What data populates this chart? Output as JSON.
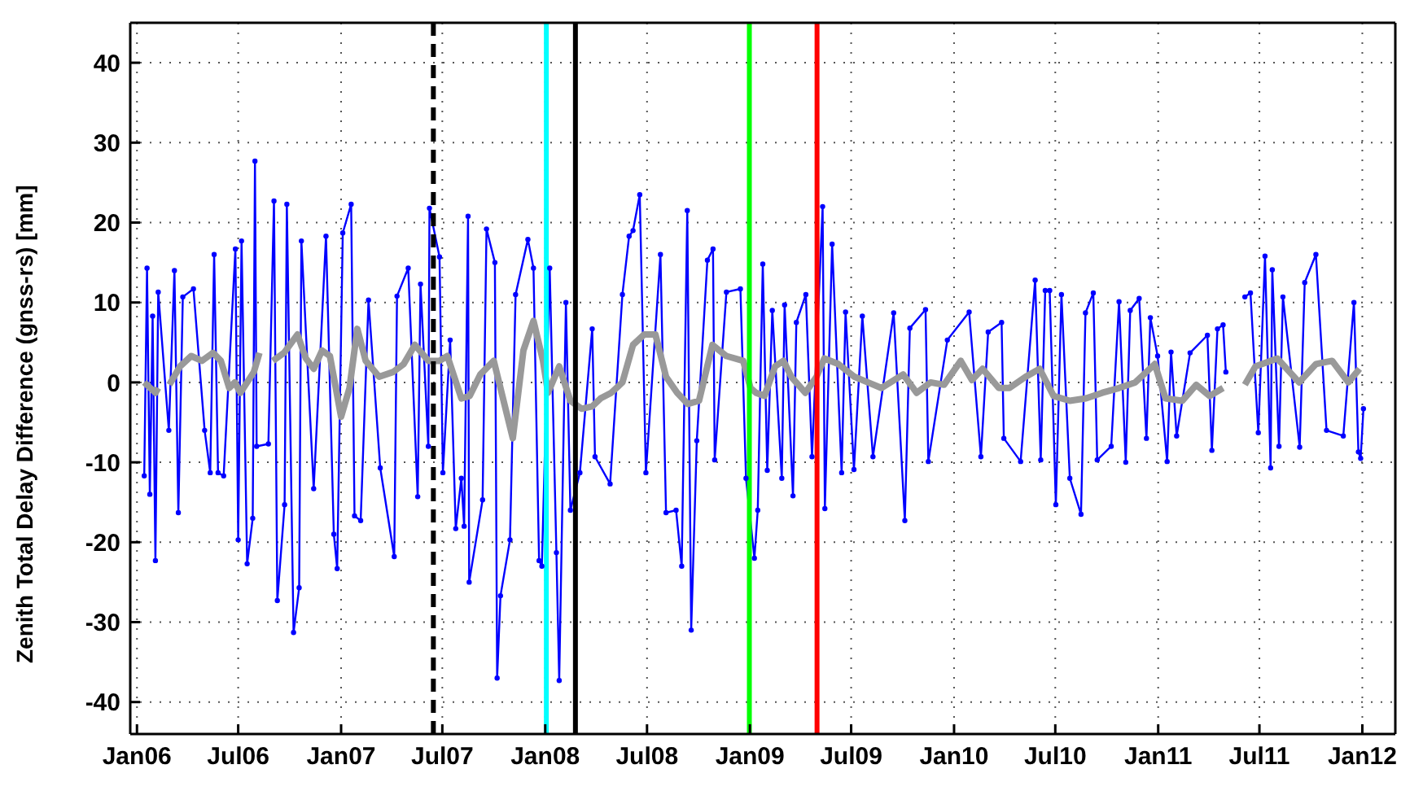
{
  "chart_data": {
    "type": "line",
    "ylabel": "Zenith Total Delay Difference (gnss-rs) [mm]",
    "xlim": [
      "2005-12-20",
      "2012-02-29"
    ],
    "ylim": [
      -44,
      45
    ],
    "xticks": [
      {
        "value": "2006-01-01",
        "label": "Jan06"
      },
      {
        "value": "2006-07-01",
        "label": "Jul06"
      },
      {
        "value": "2007-01-01",
        "label": "Jan07"
      },
      {
        "value": "2007-07-01",
        "label": "Jul07"
      },
      {
        "value": "2008-01-01",
        "label": "Jan08"
      },
      {
        "value": "2008-07-01",
        "label": "Jul08"
      },
      {
        "value": "2009-01-01",
        "label": "Jan09"
      },
      {
        "value": "2009-07-01",
        "label": "Jul09"
      },
      {
        "value": "2010-01-01",
        "label": "Jan10"
      },
      {
        "value": "2010-07-01",
        "label": "Jul10"
      },
      {
        "value": "2011-01-01",
        "label": "Jan11"
      },
      {
        "value": "2011-07-01",
        "label": "Jul11"
      },
      {
        "value": "2012-01-01",
        "label": "Jan12"
      }
    ],
    "yticks": [
      -40,
      -30,
      -20,
      -10,
      0,
      10,
      20,
      30,
      40
    ],
    "grid": true,
    "legend": false,
    "series": [
      {
        "color": "#0000ff",
        "marker": "circle",
        "line_style": "solid",
        "x": [
          "2006-01-14",
          "2006-01-19",
          "2006-01-24",
          "2006-01-29",
          "2006-02-03",
          "2006-02-08",
          "2006-02-27",
          "2006-03-09",
          "2006-03-16",
          "2006-03-24",
          "2006-04-12",
          "2006-05-02",
          "2006-05-12",
          "2006-05-19",
          "2006-05-26",
          "2006-06-05",
          "2006-06-26",
          "2006-07-01",
          "2006-07-07",
          "2006-07-17",
          "2006-07-27",
          "2006-07-31",
          "2006-08-03",
          "2006-08-24",
          "2006-09-03",
          "2006-09-09",
          "2006-09-22",
          "2006-09-26",
          "2006-10-08",
          "2006-10-18",
          "2006-10-22",
          "2006-11-13",
          "2006-12-05",
          "2006-12-19",
          "2006-12-25",
          "2007-01-04",
          "2007-01-19",
          "2007-01-25",
          "2007-02-05",
          "2007-02-19",
          "2007-03-12",
          "2007-04-06",
          "2007-04-11",
          "2007-05-01",
          "2007-05-18",
          "2007-05-23",
          "2007-06-06",
          "2007-06-08",
          "2007-06-26",
          "2007-07-02",
          "2007-07-15",
          "2007-07-25",
          "2007-08-04",
          "2007-08-09",
          "2007-08-16",
          "2007-08-18",
          "2007-09-11",
          "2007-09-18",
          "2007-10-03",
          "2007-10-07",
          "2007-10-13",
          "2007-10-30",
          "2007-11-09",
          "2007-12-01",
          "2007-12-11",
          "2007-12-21",
          "2007-12-26",
          "2008-01-09",
          "2008-01-21",
          "2008-01-26",
          "2008-02-07",
          "2008-02-15",
          "2008-03-03",
          "2008-03-25",
          "2008-03-30",
          "2008-04-26",
          "2008-05-18",
          "2008-05-30",
          "2008-06-06",
          "2008-06-18",
          "2008-06-29",
          "2008-07-25",
          "2008-08-04",
          "2008-08-22",
          "2008-09-01",
          "2008-09-11",
          "2008-09-18",
          "2008-09-28",
          "2008-10-17",
          "2008-10-27",
          "2008-10-30",
          "2008-11-20",
          "2008-12-15",
          "2008-12-25",
          "2009-01-09",
          "2009-01-15",
          "2009-01-24",
          "2009-02-01",
          "2009-02-10",
          "2009-02-27",
          "2009-03-04",
          "2009-03-19",
          "2009-03-25",
          "2009-04-11",
          "2009-04-22",
          "2009-05-11",
          "2009-05-15",
          "2009-05-28",
          "2009-06-14",
          "2009-06-21",
          "2009-07-06",
          "2009-07-21",
          "2009-08-09",
          "2009-09-15",
          "2009-10-05",
          "2009-10-14",
          "2009-11-11",
          "2009-11-16",
          "2009-12-20",
          "2010-01-28",
          "2010-02-18",
          "2010-03-03",
          "2010-03-27",
          "2010-03-31",
          "2010-04-30",
          "2010-05-26",
          "2010-06-05",
          "2010-06-13",
          "2010-06-21",
          "2010-07-02",
          "2010-07-12",
          "2010-07-27",
          "2010-08-16",
          "2010-08-24",
          "2010-09-07",
          "2010-09-14",
          "2010-10-09",
          "2010-10-23",
          "2010-11-04",
          "2010-11-12",
          "2010-11-28",
          "2010-12-11",
          "2010-12-18",
          "2010-12-31",
          "2011-01-17",
          "2011-01-24",
          "2011-02-03",
          "2011-02-27",
          "2011-03-30",
          "2011-04-07",
          "2011-04-17",
          "2011-04-27",
          "2011-05-02",
          "2011-05-20",
          "2011-06-05",
          "2011-06-15",
          "2011-06-29",
          "2011-07-11",
          "2011-07-21",
          "2011-07-24",
          "2011-08-05",
          "2011-08-12",
          "2011-09-11",
          "2011-09-20",
          "2011-10-10",
          "2011-10-29",
          "2011-11-28",
          "2011-12-17",
          "2011-12-25",
          "2011-12-29",
          "2012-01-03"
        ],
        "values": [
          -11.7,
          14.3,
          -14,
          8.3,
          -22.3,
          11.3,
          -6,
          14,
          -16.3,
          10.7,
          11.7,
          -6,
          -11.3,
          16,
          -11.3,
          -11.7,
          16.7,
          -19.7,
          17.7,
          -22.7,
          -17,
          27.7,
          -8,
          -7.7,
          22.7,
          -27.3,
          -15.3,
          22.3,
          -31.3,
          -25.7,
          17.7,
          -13.3,
          18.3,
          -19,
          -23.3,
          18.7,
          22.3,
          -16.7,
          -17.3,
          10.3,
          -10.7,
          -21.8,
          10.8,
          14.3,
          -14.3,
          12.3,
          -8,
          21.8,
          15.7,
          -11.3,
          5.3,
          -18.3,
          -12,
          -18,
          20.8,
          -25,
          -14.7,
          19.2,
          15,
          -37,
          -26.7,
          -19.7,
          11,
          17.9,
          14.3,
          -22.3,
          -23,
          14.3,
          -21.3,
          -37.3,
          10,
          -16,
          -11.3,
          6.7,
          -9.3,
          -12.7,
          11,
          18.3,
          19,
          23.5,
          -11.3,
          16,
          -16.3,
          -16,
          -23,
          21.5,
          -31,
          -7.3,
          15.3,
          16.7,
          -9.7,
          11.3,
          11.7,
          -12,
          -22,
          -16,
          14.8,
          -11,
          9,
          -12,
          9.7,
          -14.2,
          7.5,
          11,
          -9.3,
          22,
          -15.8,
          17.3,
          -11.3,
          8.8,
          -10.9,
          8.3,
          -9.3,
          8.7,
          -17.3,
          6.8,
          9.1,
          -9.9,
          5.3,
          8.8,
          -9.3,
          6.3,
          7.5,
          -7,
          -9.9,
          12.8,
          -9.7,
          11.5,
          11.5,
          -15.3,
          11,
          -12,
          -16.5,
          8.7,
          11.2,
          -9.7,
          -8,
          10.1,
          -10,
          9,
          10.5,
          -7,
          8.1,
          3.3,
          -9.9,
          3.8,
          -6.7,
          3.7,
          5.9,
          -8.5,
          6.7,
          7.2,
          1.3,
          null,
          10.7,
          11.2,
          -6.3,
          15.8,
          -10.7,
          14.1,
          -8,
          10.7,
          -8.1,
          12.5,
          16,
          -6,
          -6.7,
          10,
          -8.7,
          -9.5,
          -3.3
        ]
      },
      {
        "color": "#999999",
        "marker": "none",
        "line_style": "solid",
        "x": [
          "2006-01-14",
          "2006-02-03",
          "2006-02-08",
          "2006-02-18",
          "2006-02-28",
          "2006-03-19",
          "2006-04-08",
          "2006-04-27",
          "2006-05-17",
          "2006-05-31",
          "2006-06-15",
          "2006-06-25",
          "2006-07-05",
          "2006-07-29",
          "2006-08-08",
          "2006-08-17",
          "2006-09-01",
          "2006-09-21",
          "2006-10-15",
          "2006-10-30",
          "2006-11-13",
          "2006-11-28",
          "2006-12-12",
          "2007-01-01",
          "2007-01-16",
          "2007-01-30",
          "2007-02-14",
          "2007-03-10",
          "2007-04-04",
          "2007-04-23",
          "2007-05-13",
          "2007-06-06",
          "2007-06-26",
          "2007-07-10",
          "2007-08-04",
          "2007-08-19",
          "2007-09-07",
          "2007-10-01",
          "2007-11-04",
          "2007-11-23",
          "2007-12-11",
          "2007-12-28",
          "2008-01-06",
          "2008-01-26",
          "2008-02-15",
          "2008-03-06",
          "2008-03-25",
          "2008-04-09",
          "2008-04-28",
          "2008-05-18",
          "2008-06-06",
          "2008-06-26",
          "2008-07-16",
          "2008-08-04",
          "2008-08-24",
          "2008-09-12",
          "2008-10-02",
          "2008-10-26",
          "2008-11-20",
          "2008-12-20",
          "2009-01-02",
          "2009-01-12",
          "2009-01-27",
          "2009-02-15",
          "2009-03-02",
          "2009-03-16",
          "2009-04-10",
          "2009-04-30",
          "2009-05-14",
          "2009-06-08",
          "2009-07-07",
          "2009-07-31",
          "2009-08-24",
          "2009-10-02",
          "2009-10-26",
          "2009-11-20",
          "2009-12-14",
          "2010-01-13",
          "2010-02-02",
          "2010-02-21",
          "2010-03-22",
          "2010-04-10",
          "2010-05-09",
          "2010-06-03",
          "2010-06-28",
          "2010-07-27",
          "2010-08-25",
          "2010-09-23",
          "2010-10-23",
          "2010-11-21",
          "2010-12-26",
          "2011-01-14",
          "2011-02-13",
          "2011-03-10",
          "2011-04-03",
          "2011-04-27",
          "2011-05-17",
          "2011-06-05",
          "2011-06-24",
          "2011-08-02",
          "2011-09-10",
          "2011-10-10",
          "2011-11-08",
          "2011-12-07",
          "2011-12-27"
        ],
        "values": [
          0,
          -1.3,
          -0.7,
          null,
          -0.3,
          2,
          3.3,
          2.7,
          3.7,
          2.7,
          -0.7,
          0,
          -1.3,
          1.3,
          3.7,
          null,
          2.7,
          3.7,
          6,
          3,
          1.7,
          4,
          3.3,
          -4.3,
          -0.7,
          6.7,
          2.7,
          0.7,
          1.3,
          2.3,
          4.7,
          2.7,
          2.7,
          3.3,
          -2,
          -1.7,
          1,
          2.7,
          -7,
          4,
          7.7,
          2.7,
          -1.3,
          2,
          -2.3,
          -3.3,
          -3,
          -2,
          -1.3,
          0,
          4.7,
          6,
          6,
          0.7,
          -1.3,
          -2.7,
          -2.3,
          4.7,
          3.3,
          2.7,
          -0.7,
          -1.3,
          -1.7,
          2,
          2.7,
          0.7,
          -1.3,
          0.7,
          3,
          2.3,
          0.7,
          0,
          -0.7,
          1,
          -1.3,
          0,
          -0.3,
          2.7,
          0.3,
          1.7,
          -0.7,
          -0.7,
          0.7,
          1.7,
          -1.7,
          -2.3,
          -2,
          -1.3,
          -0.7,
          0,
          2.3,
          -2,
          -2.3,
          -0.3,
          -1.7,
          -0.7,
          null,
          -0.3,
          2,
          3,
          0,
          2.3,
          2.7,
          0,
          1.7
        ]
      }
    ],
    "ref_lines": [
      {
        "axis": "x",
        "value": "2007-06-15",
        "color": "#000000",
        "line_style": "dashed"
      },
      {
        "axis": "x",
        "value": "2008-01-03",
        "color": "#00ffff",
        "line_style": "solid"
      },
      {
        "axis": "x",
        "value": "2008-02-24",
        "color": "#000000",
        "line_style": "solid"
      },
      {
        "axis": "x",
        "value": "2008-12-31",
        "color": "#00ff00",
        "line_style": "solid"
      },
      {
        "axis": "x",
        "value": "2009-05-01",
        "color": "#ff0000",
        "line_style": "solid"
      }
    ]
  }
}
